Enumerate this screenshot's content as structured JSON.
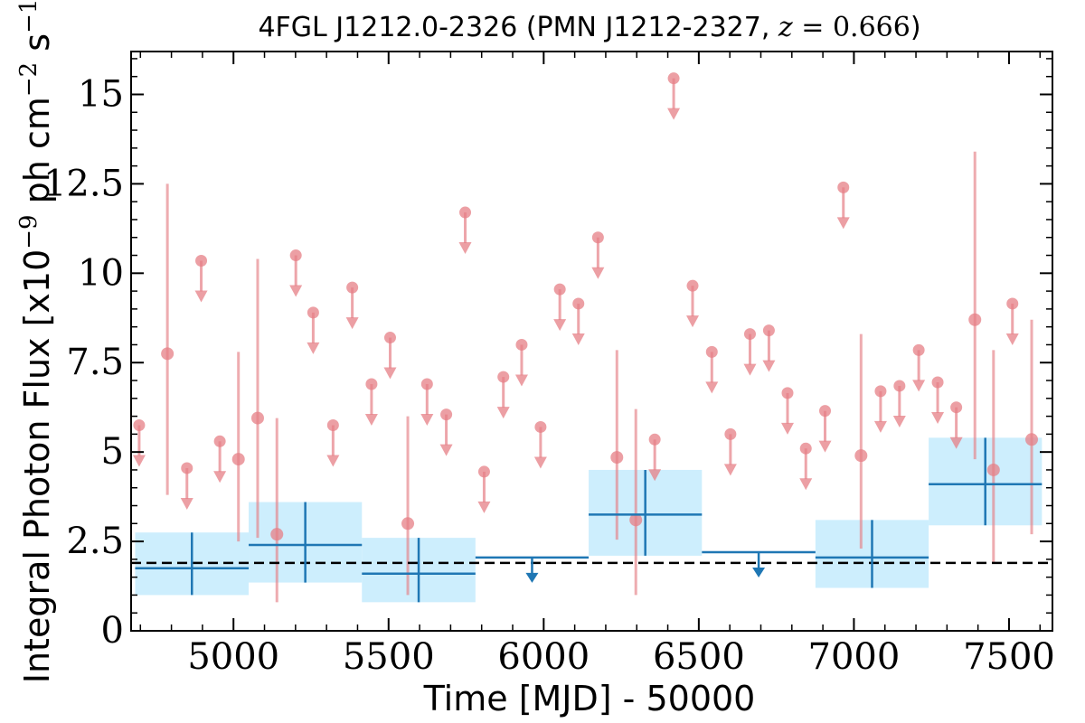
{
  "chart_data": {
    "type": "scatter",
    "title_prefix": "4FGL J1212.0-2326 (PMN J1212-2327, ",
    "title_math_var": "z",
    "title_math_rest": " = 0.666",
    "title_suffix": ")",
    "xlabel": "Time [MJD] - 50000",
    "ylabel_prefix": "Integral Photon Flux [x10",
    "ylabel_exp": "−9",
    "ylabel_middle": " ph cm",
    "ylabel_exp2": "−2",
    "ylabel_middle2": " s",
    "ylabel_exp3": "−1",
    "ylabel_suffix": "]",
    "xlim": [
      4670,
      7640
    ],
    "ylim": [
      0,
      16.2
    ],
    "xticks": [
      5000,
      5500,
      6000,
      6500,
      7000,
      7500
    ],
    "xtick_labels": [
      "5000",
      "5500",
      "6000",
      "6500",
      "7000",
      "7500"
    ],
    "yticks": [
      0,
      2.5,
      5,
      7.5,
      10,
      12.5,
      15
    ],
    "ytick_labels": [
      "0",
      "2.5",
      "5",
      "7.5",
      "10",
      "12.5",
      "15"
    ],
    "colors": {
      "monthly": "#e57f86",
      "yearly": "#1f77b4",
      "yearly_band": "#cdeefd",
      "average_line": "#000000"
    },
    "average_flux": 1.9,
    "series": [
      {
        "kind": "monthly_detections",
        "points": [
          {
            "x": 4787,
            "y": 7.75,
            "ylo": 3.8,
            "yhi": 12.5
          },
          {
            "x": 5016,
            "y": 4.8,
            "ylo": 2.5,
            "yhi": 7.8
          },
          {
            "x": 5078,
            "y": 5.95,
            "ylo": 2.6,
            "yhi": 10.4
          },
          {
            "x": 5140,
            "y": 2.7,
            "ylo": 0.8,
            "yhi": 5.95
          },
          {
            "x": 5562,
            "y": 3.0,
            "ylo": 1.0,
            "yhi": 6.0
          },
          {
            "x": 6236,
            "y": 4.85,
            "ylo": 2.55,
            "yhi": 7.85
          },
          {
            "x": 6297,
            "y": 3.1,
            "ylo": 1.0,
            "yhi": 6.2
          },
          {
            "x": 7023,
            "y": 4.9,
            "ylo": 2.3,
            "yhi": 8.3
          },
          {
            "x": 7390,
            "y": 8.7,
            "ylo": 4.8,
            "yhi": 13.4
          },
          {
            "x": 7450,
            "y": 4.5,
            "ylo": 1.9,
            "yhi": 7.85
          },
          {
            "x": 7573,
            "y": 5.35,
            "ylo": 2.7,
            "yhi": 8.7
          }
        ]
      },
      {
        "kind": "monthly_upper_limits",
        "points": [
          {
            "x": 4696,
            "y": 5.75
          },
          {
            "x": 4850,
            "y": 4.55
          },
          {
            "x": 4896,
            "y": 10.35
          },
          {
            "x": 4956,
            "y": 5.3
          },
          {
            "x": 5201,
            "y": 10.5
          },
          {
            "x": 5257,
            "y": 8.9
          },
          {
            "x": 5321,
            "y": 5.75
          },
          {
            "x": 5383,
            "y": 9.6
          },
          {
            "x": 5445,
            "y": 6.9
          },
          {
            "x": 5505,
            "y": 8.2
          },
          {
            "x": 5624,
            "y": 6.9
          },
          {
            "x": 5686,
            "y": 6.05
          },
          {
            "x": 5747,
            "y": 11.7
          },
          {
            "x": 5808,
            "y": 4.45
          },
          {
            "x": 5870,
            "y": 7.1
          },
          {
            "x": 5929,
            "y": 8.0
          },
          {
            "x": 5990,
            "y": 5.7
          },
          {
            "x": 6052,
            "y": 9.55
          },
          {
            "x": 6112,
            "y": 9.15
          },
          {
            "x": 6175,
            "y": 11.0
          },
          {
            "x": 6358,
            "y": 5.35
          },
          {
            "x": 6419,
            "y": 15.45
          },
          {
            "x": 6480,
            "y": 9.65
          },
          {
            "x": 6542,
            "y": 7.8
          },
          {
            "x": 6602,
            "y": 5.5
          },
          {
            "x": 6665,
            "y": 8.3
          },
          {
            "x": 6726,
            "y": 8.4
          },
          {
            "x": 6786,
            "y": 6.65
          },
          {
            "x": 6845,
            "y": 5.1
          },
          {
            "x": 6907,
            "y": 6.15
          },
          {
            "x": 6966,
            "y": 12.4
          },
          {
            "x": 7086,
            "y": 6.7
          },
          {
            "x": 7147,
            "y": 6.85
          },
          {
            "x": 7209,
            "y": 7.85
          },
          {
            "x": 7270,
            "y": 6.95
          },
          {
            "x": 7330,
            "y": 6.25
          },
          {
            "x": 7511,
            "y": 9.15
          }
        ]
      },
      {
        "kind": "yearly_detections",
        "points": [
          {
            "x0": 4683,
            "x1": 5049,
            "y": 1.75,
            "ylo": 1.0,
            "yhi": 2.75
          },
          {
            "x0": 5049,
            "x1": 5414,
            "y": 2.4,
            "ylo": 1.35,
            "yhi": 3.6
          },
          {
            "x0": 5414,
            "x1": 5780,
            "y": 1.6,
            "ylo": 0.8,
            "yhi": 2.6
          },
          {
            "x0": 6145,
            "x1": 6510,
            "y": 3.25,
            "ylo": 2.1,
            "yhi": 4.5
          },
          {
            "x0": 6876,
            "x1": 7241,
            "y": 2.05,
            "ylo": 1.2,
            "yhi": 3.1
          },
          {
            "x0": 7241,
            "x1": 7606,
            "y": 4.1,
            "ylo": 2.95,
            "yhi": 5.4
          }
        ]
      },
      {
        "kind": "yearly_upper_limits",
        "points": [
          {
            "x0": 5780,
            "x1": 6145,
            "y": 2.05
          },
          {
            "x0": 6510,
            "x1": 6876,
            "y": 2.2
          }
        ]
      }
    ]
  }
}
